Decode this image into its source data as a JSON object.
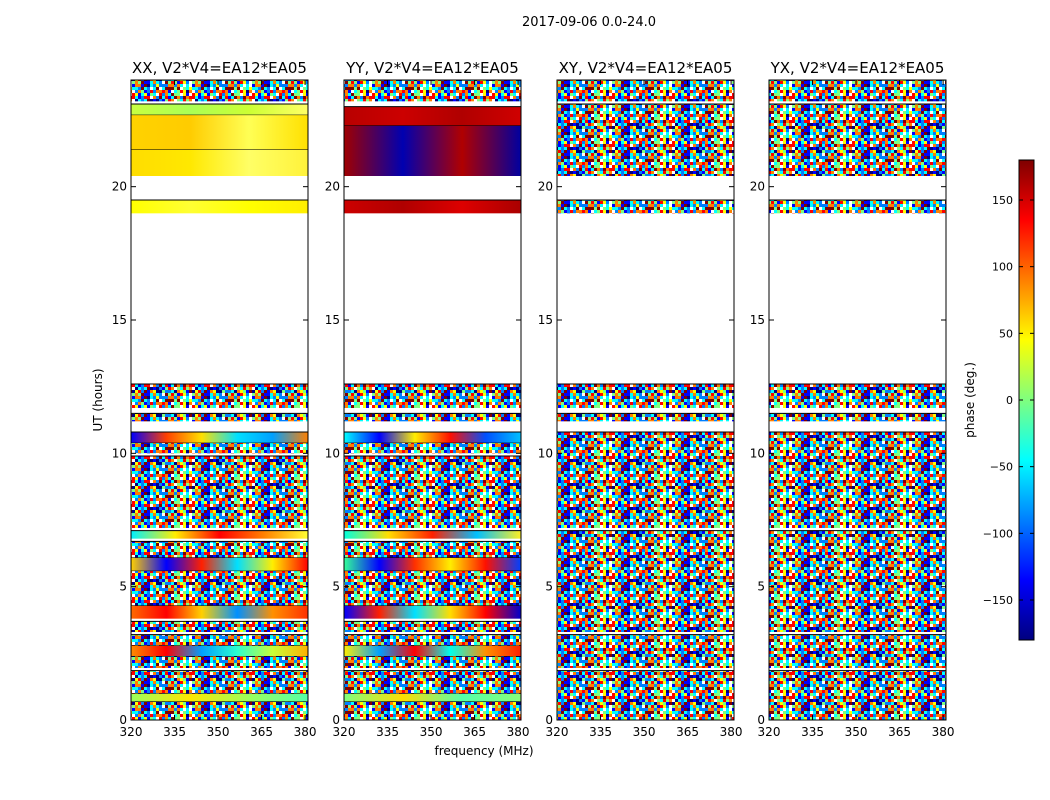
{
  "figure": {
    "suptitle": "2017-09-06 0.0-24.0",
    "ylabel": "UT (hours)",
    "xlabel": "frequency (MHz)"
  },
  "colorbar": {
    "label": "phase (deg.)",
    "range": [
      -180,
      180
    ],
    "ticks": [
      -150,
      -100,
      -50,
      0,
      50,
      100,
      150
    ],
    "tick_labels": [
      "−150",
      "−100",
      "−50",
      "0",
      "50",
      "100",
      "150"
    ],
    "colormap": [
      "#00007f",
      "#0000ff",
      "#007fff",
      "#00ffff",
      "#7fff7f",
      "#ffff00",
      "#ff7f00",
      "#ff0000",
      "#7f0000"
    ]
  },
  "chart_data": {
    "type": "heatmap",
    "xlim": [
      320,
      381
    ],
    "ylim": [
      0,
      24
    ],
    "xticks": [
      320,
      335,
      350,
      365,
      380
    ],
    "yticks": [
      0,
      5,
      10,
      15,
      20
    ],
    "panels": [
      {
        "title": "XX, V2*V4=EA12*EA05",
        "show_yticks": true,
        "rows": [
          {
            "y": [
              0.0,
              0.7
            ],
            "kind": "noise"
          },
          {
            "y": [
              0.7,
              1.0
            ],
            "kind": "gradient",
            "colors": [
              "#9bff5c",
              "#ffe600",
              "#9bff5c",
              "#55ffa8"
            ]
          },
          {
            "y": [
              1.0,
              1.85
            ],
            "kind": "noise"
          },
          {
            "y": [
              1.95,
              2.4
            ],
            "kind": "noise"
          },
          {
            "y": [
              2.4,
              2.8
            ],
            "kind": "gradient",
            "colors": [
              "#ff8c00",
              "#ff0000",
              "#00a0ff",
              "#2bffd0",
              "#c8ff36",
              "#ffb000"
            ]
          },
          {
            "y": [
              2.8,
              3.2
            ],
            "kind": "noise"
          },
          {
            "y": [
              3.3,
              3.7
            ],
            "kind": "noise"
          },
          {
            "y": [
              3.8,
              4.3
            ],
            "kind": "gradient",
            "colors": [
              "#ff6a00",
              "#ff0000",
              "#ffd000",
              "#0090ff",
              "#ff9000",
              "#ff3000"
            ]
          },
          {
            "y": [
              4.3,
              5.6
            ],
            "kind": "noise"
          },
          {
            "y": [
              5.6,
              6.1
            ],
            "kind": "gradient",
            "colors": [
              "#ffd000",
              "#0000ff",
              "#ff2000",
              "#00e0ff",
              "#ffee00",
              "#ff0000"
            ]
          },
          {
            "y": [
              6.1,
              6.7
            ],
            "kind": "noise"
          },
          {
            "y": [
              6.8,
              7.1
            ],
            "kind": "gradient",
            "colors": [
              "#00f0ff",
              "#ffee00",
              "#ff0000",
              "#ff8000",
              "#ffff33"
            ]
          },
          {
            "y": [
              7.2,
              9.9
            ],
            "kind": "noise"
          },
          {
            "y": [
              10.0,
              10.4
            ],
            "kind": "noise"
          },
          {
            "y": [
              10.4,
              10.8
            ],
            "kind": "gradient",
            "colors": [
              "#0000ff",
              "#ff4000",
              "#ffe000",
              "#00e0ff",
              "#00a0ff",
              "#ff8000"
            ]
          },
          {
            "y": [
              11.2,
              11.5
            ],
            "kind": "noise"
          },
          {
            "y": [
              11.7,
              12.6
            ],
            "kind": "noise"
          },
          {
            "y": [
              19.0,
              19.5
            ],
            "kind": "gradient",
            "colors": [
              "#ffff00",
              "#ffff33",
              "#ffff00",
              "#ffee00"
            ]
          },
          {
            "y": [
              20.4,
              21.4
            ],
            "kind": "gradient",
            "colors": [
              "#ffdd00",
              "#ffe800",
              "#ffff66",
              "#fff23a"
            ]
          },
          {
            "y": [
              21.4,
              22.7
            ],
            "kind": "gradient",
            "colors": [
              "#ffd200",
              "#ffcc00",
              "#ffff55",
              "#ffe000"
            ]
          },
          {
            "y": [
              22.7,
              23.1
            ],
            "kind": "gradient",
            "colors": [
              "#c8ff40",
              "#aaff55",
              "#ccff33",
              "#ffff66"
            ]
          },
          {
            "y": [
              23.2,
              24.0
            ],
            "kind": "noise"
          }
        ]
      },
      {
        "title": "YY, V2*V4=EA12*EA05",
        "show_yticks": true,
        "rows": [
          {
            "y": [
              0.0,
              0.7
            ],
            "kind": "noise"
          },
          {
            "y": [
              0.7,
              1.0
            ],
            "kind": "gradient",
            "colors": [
              "#7fff7f",
              "#ffdd00",
              "#55ffaa",
              "#88ff77"
            ]
          },
          {
            "y": [
              1.0,
              1.85
            ],
            "kind": "noise"
          },
          {
            "y": [
              1.95,
              2.4
            ],
            "kind": "noise"
          },
          {
            "y": [
              2.4,
              2.8
            ],
            "kind": "gradient",
            "colors": [
              "#ffee00",
              "#00a0ff",
              "#ff0000",
              "#00ffee",
              "#ff9000",
              "#ff2000"
            ]
          },
          {
            "y": [
              2.8,
              3.2
            ],
            "kind": "noise"
          },
          {
            "y": [
              3.3,
              3.7
            ],
            "kind": "noise"
          },
          {
            "y": [
              3.8,
              4.3
            ],
            "kind": "gradient",
            "colors": [
              "#0000ff",
              "#ff2000",
              "#00e0ff",
              "#ffdd00",
              "#ff0000",
              "#0000cc"
            ]
          },
          {
            "y": [
              4.3,
              5.6
            ],
            "kind": "noise"
          },
          {
            "y": [
              5.6,
              6.1
            ],
            "kind": "gradient",
            "colors": [
              "#33ff99",
              "#0000ff",
              "#ff3000",
              "#ffee00",
              "#ff1000",
              "#0040ff"
            ]
          },
          {
            "y": [
              6.1,
              6.7
            ],
            "kind": "noise"
          },
          {
            "y": [
              6.8,
              7.1
            ],
            "kind": "gradient",
            "colors": [
              "#00ffdd",
              "#ffdd00",
              "#ff2000",
              "#00c0ff",
              "#ffee22"
            ]
          },
          {
            "y": [
              7.2,
              9.9
            ],
            "kind": "noise"
          },
          {
            "y": [
              10.0,
              10.4
            ],
            "kind": "noise"
          },
          {
            "y": [
              10.4,
              10.8
            ],
            "kind": "gradient",
            "colors": [
              "#00ffff",
              "#0000ff",
              "#ffee00",
              "#ff1000",
              "#0050ff",
              "#00c0ff"
            ]
          },
          {
            "y": [
              11.2,
              11.5
            ],
            "kind": "noise"
          },
          {
            "y": [
              11.7,
              12.6
            ],
            "kind": "noise"
          },
          {
            "y": [
              19.0,
              19.5
            ],
            "kind": "gradient",
            "colors": [
              "#cc0000",
              "#b00000",
              "#dd0000",
              "#aa0000"
            ]
          },
          {
            "y": [
              20.4,
              22.3
            ],
            "kind": "gradient",
            "colors": [
              "#a00000",
              "#0000b0",
              "#b00000",
              "#0000a0"
            ]
          },
          {
            "y": [
              22.3,
              23.0
            ],
            "kind": "gradient",
            "colors": [
              "#b80000",
              "#cc0000",
              "#b00000",
              "#d00000"
            ]
          },
          {
            "y": [
              23.2,
              24.0
            ],
            "kind": "noise"
          }
        ]
      },
      {
        "title": "XY, V2*V4=EA12*EA05",
        "show_yticks": true,
        "rows": [
          {
            "y": [
              0.0,
              1.85
            ],
            "kind": "noise"
          },
          {
            "y": [
              1.95,
              3.2
            ],
            "kind": "noise"
          },
          {
            "y": [
              3.3,
              7.1
            ],
            "kind": "noise"
          },
          {
            "y": [
              7.2,
              10.8
            ],
            "kind": "noise"
          },
          {
            "y": [
              11.2,
              11.5
            ],
            "kind": "noise"
          },
          {
            "y": [
              11.7,
              12.6
            ],
            "kind": "noise"
          },
          {
            "y": [
              19.0,
              19.5
            ],
            "kind": "noise"
          },
          {
            "y": [
              20.4,
              23.1
            ],
            "kind": "noise"
          },
          {
            "y": [
              23.2,
              24.0
            ],
            "kind": "noise"
          }
        ]
      },
      {
        "title": "YX, V2*V4=EA12*EA05",
        "show_yticks": true,
        "rows": [
          {
            "y": [
              0.0,
              1.85
            ],
            "kind": "noise"
          },
          {
            "y": [
              1.95,
              3.2
            ],
            "kind": "noise"
          },
          {
            "y": [
              3.3,
              7.1
            ],
            "kind": "noise"
          },
          {
            "y": [
              7.2,
              10.8
            ],
            "kind": "noise"
          },
          {
            "y": [
              11.2,
              11.5
            ],
            "kind": "noise"
          },
          {
            "y": [
              11.7,
              12.6
            ],
            "kind": "noise"
          },
          {
            "y": [
              19.0,
              19.5
            ],
            "kind": "noise"
          },
          {
            "y": [
              20.4,
              23.1
            ],
            "kind": "noise"
          },
          {
            "y": [
              23.2,
              24.0
            ],
            "kind": "noise"
          }
        ]
      }
    ]
  }
}
